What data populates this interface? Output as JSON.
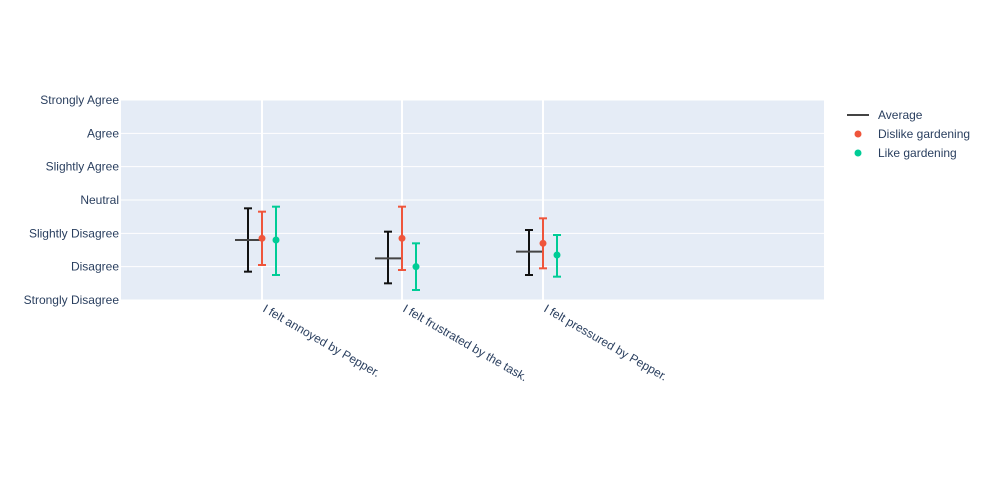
{
  "chart_data": {
    "type": "scatter",
    "title": "",
    "xlabel": "",
    "ylabel": "",
    "categories": [
      "I felt annoyed by Pepper.",
      "I felt frustrated by the task.",
      "I felt pressured by Pepper."
    ],
    "y_tick_labels": [
      "Strongly Disagree",
      "Disagree",
      "Slightly Disagree",
      "Neutral",
      "Slightly Agree",
      "Agree",
      "Strongly Agree"
    ],
    "ylim": [
      1,
      7
    ],
    "grid": true,
    "legend_position": "top-right",
    "series": [
      {
        "name": "Average",
        "marker": "line",
        "color": "#444444",
        "values": [
          2.8,
          2.25,
          2.45
        ],
        "error_low": [
          1.85,
          1.5,
          1.75
        ],
        "error_high": [
          3.75,
          3.05,
          3.1
        ]
      },
      {
        "name": "Dislike gardening",
        "marker": "circle",
        "color": "#EF553B",
        "values": [
          2.85,
          2.85,
          2.7
        ],
        "error_low": [
          2.05,
          1.9,
          1.95
        ],
        "error_high": [
          3.65,
          3.8,
          3.45
        ]
      },
      {
        "name": "Like gardening",
        "marker": "circle",
        "color": "#00CC96",
        "values": [
          2.8,
          2.0,
          2.35
        ],
        "error_low": [
          1.75,
          1.3,
          1.7
        ],
        "error_high": [
          3.8,
          2.7,
          2.95
        ]
      }
    ]
  }
}
